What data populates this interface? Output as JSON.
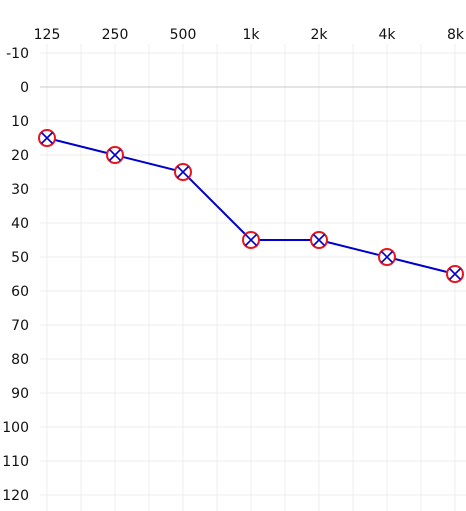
{
  "chart_data": {
    "type": "line",
    "title": "",
    "xlabel": "",
    "ylabel": "",
    "categories": [
      "125",
      "250",
      "500",
      "1k",
      "2k",
      "4k",
      "8k"
    ],
    "y_ticks": [
      -10,
      0,
      10,
      20,
      30,
      40,
      50,
      60,
      70,
      80,
      90,
      100,
      110,
      120
    ],
    "y_tick_labels": [
      "-10",
      "0",
      "10",
      "20",
      "30",
      "40",
      "50",
      "60",
      "70",
      "80",
      "90",
      "100",
      "110",
      "120"
    ],
    "ylim": [
      -10,
      120
    ],
    "y_inverted": true,
    "x_axis_position": "top",
    "grid": true,
    "series": [
      {
        "values": [
          15,
          20,
          25,
          45,
          45,
          50,
          55
        ],
        "line_color": "#0000cc",
        "marker": "circle-x",
        "marker_ring_color": "#e8141e",
        "marker_cross_color": "#0000cc"
      }
    ]
  }
}
